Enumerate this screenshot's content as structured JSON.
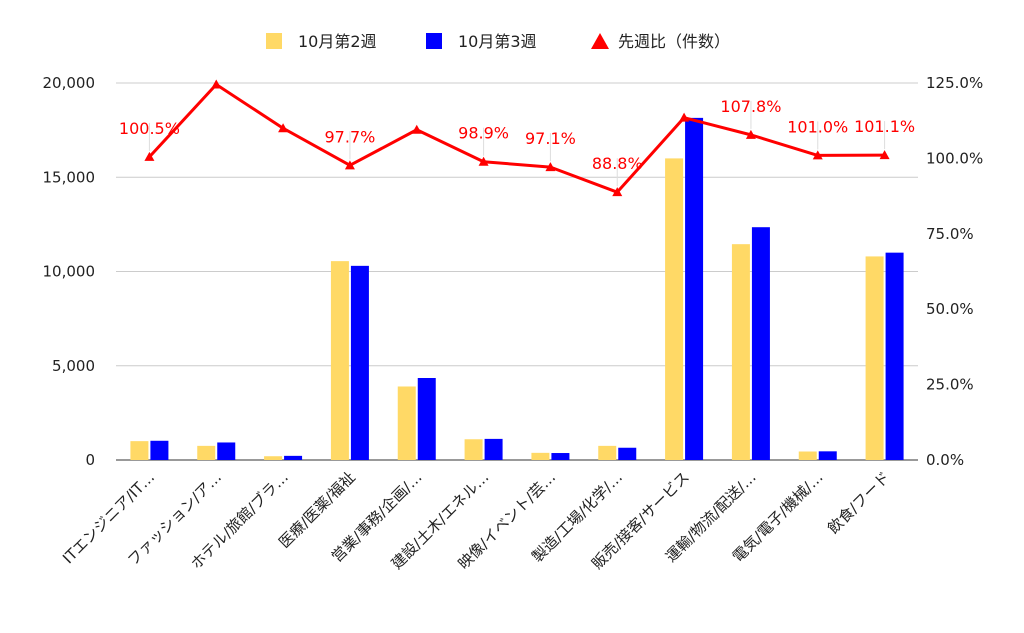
{
  "chart_data": {
    "type": "bar",
    "title": "",
    "categories": [
      "ITエンジニア/IT…",
      "ファッション/ア…",
      "ホテル/旅館/ブラ…",
      "医療/医薬/福祉",
      "営業/事務/企画/…",
      "建設/土木/エネル…",
      "映像/イベント/芸…",
      "製造/工場/化学/…",
      "販売/接客/サービス",
      "運輸/物流/配送/…",
      "電気/電子/機械/…",
      "飲食/フード"
    ],
    "series": [
      {
        "name": "10月第2週",
        "color": "#ffd966",
        "axis": "left",
        "values": [
          1000,
          750,
          200,
          10550,
          3900,
          1100,
          380,
          750,
          16000,
          11450,
          450,
          10800
        ]
      },
      {
        "name": "10月第3週",
        "color": "#0000ff",
        "axis": "left",
        "values": [
          1020,
          930,
          220,
          10300,
          4350,
          1120,
          370,
          650,
          18150,
          12350,
          460,
          11000
        ]
      },
      {
        "name": "先週比（件数）",
        "color": "#ff0000",
        "axis": "right",
        "type": "line",
        "marker": "triangle",
        "values": [
          100.5,
          124.5,
          110.0,
          97.7,
          109.5,
          98.9,
          97.1,
          88.8,
          113.5,
          107.8,
          101.0,
          101.1
        ],
        "labels": [
          "100.5%",
          "",
          "",
          "97.7%",
          "",
          "98.9%",
          "97.1%",
          "88.8%",
          "",
          "107.8%",
          "101.0%",
          "101.1%"
        ]
      }
    ],
    "y_left": {
      "min": 0,
      "max": 20000,
      "ticks": [
        "0",
        "5,000",
        "10,000",
        "15,000",
        "20,000"
      ]
    },
    "y_right": {
      "min": 0,
      "max": 125,
      "ticks": [
        "0.0%",
        "25.0%",
        "50.0%",
        "75.0%",
        "100.0%",
        "125.0%"
      ]
    },
    "legend_position": "top",
    "grid": true
  }
}
